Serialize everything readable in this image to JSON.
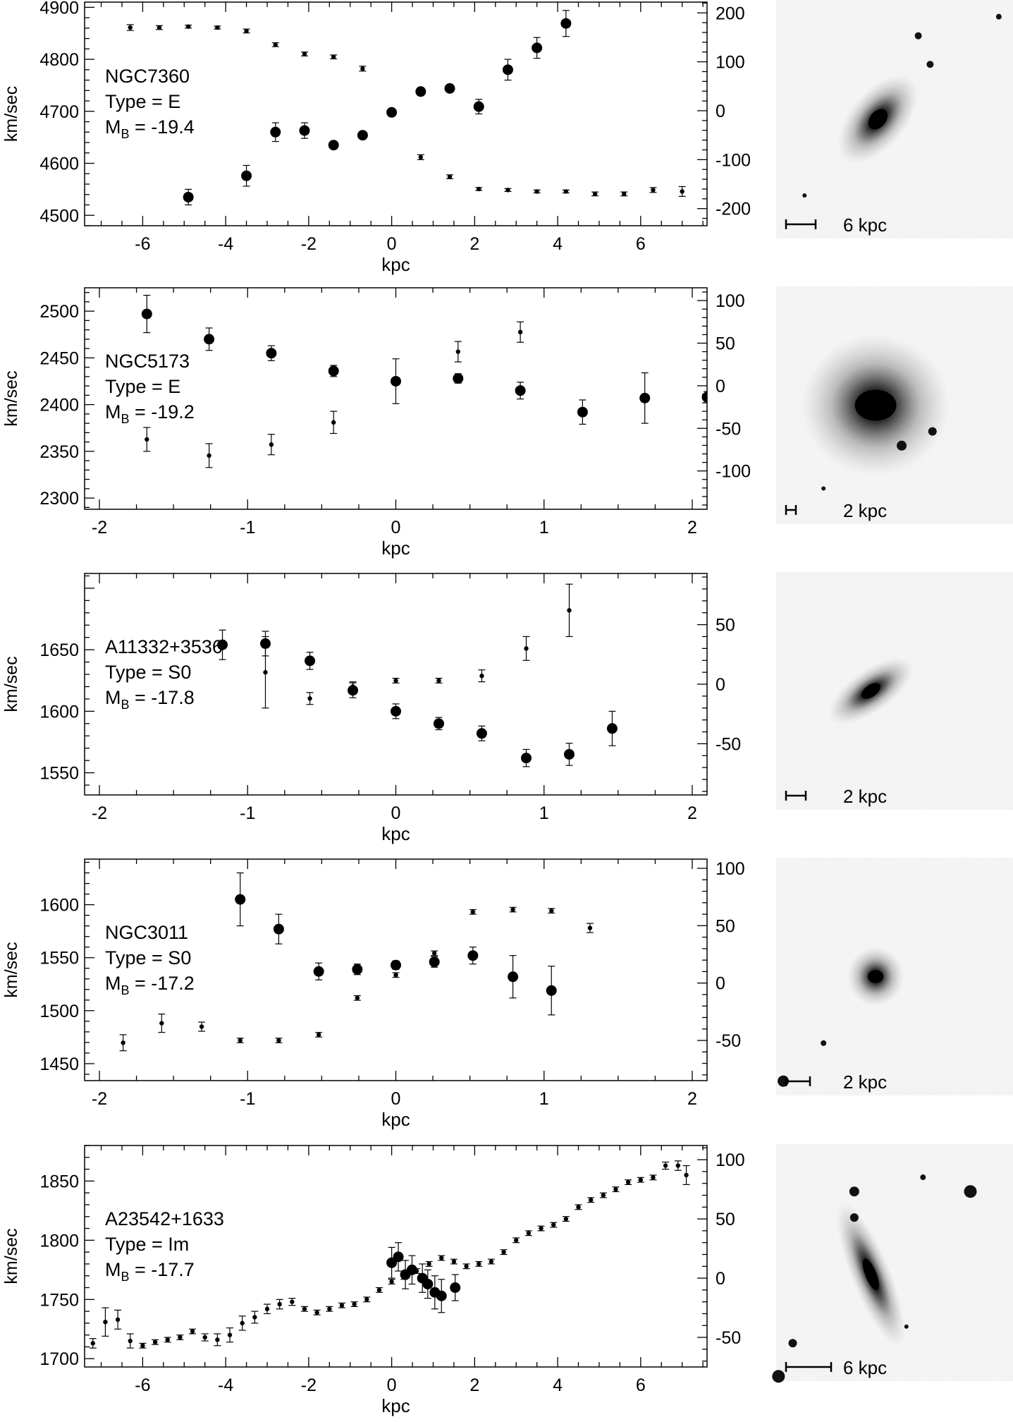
{
  "ylabel_left": "km/sec",
  "xlabel": "kpc",
  "chart_data": [
    {
      "type": "scatter",
      "name": "NGC7360",
      "label_lines": [
        "NGC7360",
        "Type = E",
        "M_B = -19.4"
      ],
      "xlim": [
        -7.4,
        7.6
      ],
      "xticks": [
        -6,
        -4,
        -2,
        0,
        2,
        4,
        6
      ],
      "ylim_left": [
        4480,
        4910
      ],
      "yticks_left": [
        4500,
        4600,
        4700,
        4800,
        4900
      ],
      "ylim_right": [
        -235,
        222
      ],
      "yticks_right": [
        -200,
        -100,
        0,
        100,
        200
      ],
      "velocity_points": [
        {
          "x": -4.9,
          "y": 4535,
          "err": 15
        },
        {
          "x": -3.5,
          "y": 4576,
          "err": 20
        },
        {
          "x": -2.8,
          "y": 4660,
          "err": 18
        },
        {
          "x": -2.1,
          "y": 4663,
          "err": 15
        },
        {
          "x": -1.4,
          "y": 4635,
          "err": 6
        },
        {
          "x": -0.7,
          "y": 4654,
          "err": 4
        },
        {
          "x": 0.0,
          "y": 4698,
          "err": 5
        },
        {
          "x": 0.7,
          "y": 4738,
          "err": 5
        },
        {
          "x": 1.4,
          "y": 4744,
          "err": 6
        },
        {
          "x": 2.1,
          "y": 4709,
          "err": 14
        },
        {
          "x": 2.8,
          "y": 4780,
          "err": 20
        },
        {
          "x": 3.5,
          "y": 4822,
          "err": 20
        },
        {
          "x": 4.2,
          "y": 4869,
          "err": 25
        }
      ],
      "dispersion_points": [
        {
          "x": -6.3,
          "y": 170,
          "err": 6
        },
        {
          "x": -5.6,
          "y": 170,
          "err": 4
        },
        {
          "x": -4.9,
          "y": 172,
          "err": 3
        },
        {
          "x": -4.2,
          "y": 170,
          "err": 3
        },
        {
          "x": -3.5,
          "y": 163,
          "err": 4
        },
        {
          "x": -2.8,
          "y": 135,
          "err": 4
        },
        {
          "x": -2.1,
          "y": 116,
          "err": 4
        },
        {
          "x": -1.4,
          "y": 110,
          "err": 4
        },
        {
          "x": -0.7,
          "y": 86,
          "err": 5
        },
        {
          "x": 0.7,
          "y": -95,
          "err": 5
        },
        {
          "x": 1.4,
          "y": -135,
          "err": 4
        },
        {
          "x": 2.1,
          "y": -160,
          "err": 3
        },
        {
          "x": 2.8,
          "y": -162,
          "err": 3
        },
        {
          "x": 3.5,
          "y": -165,
          "err": 3
        },
        {
          "x": 4.2,
          "y": -165,
          "err": 3
        },
        {
          "x": 4.9,
          "y": -170,
          "err": 4
        },
        {
          "x": 5.6,
          "y": -170,
          "err": 4
        },
        {
          "x": 6.3,
          "y": -162,
          "err": 5
        },
        {
          "x": 7.0,
          "y": -165,
          "err": 10
        }
      ],
      "image_scale": "6 kpc"
    },
    {
      "type": "scatter",
      "name": "NGC5173",
      "label_lines": [
        "NGC5173",
        "Type = E",
        "M_B = -19.2"
      ],
      "xlim": [
        -2.1,
        2.1
      ],
      "xticks": [
        -2,
        -1,
        0,
        1,
        2
      ],
      "ylim_left": [
        2288,
        2525
      ],
      "yticks_left": [
        2300,
        2350,
        2400,
        2450,
        2500
      ],
      "ylim_right": [
        -145,
        115
      ],
      "yticks_right": [
        -100,
        -50,
        0,
        50,
        100
      ],
      "velocity_points": [
        {
          "x": -1.68,
          "y": 2497,
          "err": 20
        },
        {
          "x": -1.26,
          "y": 2470,
          "err": 12
        },
        {
          "x": -0.84,
          "y": 2455,
          "err": 8
        },
        {
          "x": -0.42,
          "y": 2436,
          "err": 6
        },
        {
          "x": 0.0,
          "y": 2425,
          "err": 24
        },
        {
          "x": 0.42,
          "y": 2428,
          "err": 5
        },
        {
          "x": 0.84,
          "y": 2415,
          "err": 9
        },
        {
          "x": 1.26,
          "y": 2392,
          "err": 13
        },
        {
          "x": 1.68,
          "y": 2407,
          "err": 27
        },
        {
          "x": 2.1,
          "y": 2408,
          "err": 6
        }
      ],
      "dispersion_points": [
        {
          "x": -1.68,
          "y": -63,
          "err": 14
        },
        {
          "x": -1.26,
          "y": -82,
          "err": 14
        },
        {
          "x": -0.84,
          "y": -69,
          "err": 12
        },
        {
          "x": -0.42,
          "y": -43,
          "err": 13
        },
        {
          "x": 0.42,
          "y": 40,
          "err": 12
        },
        {
          "x": 0.84,
          "y": 63,
          "err": 12
        }
      ],
      "image_scale": "2 kpc"
    },
    {
      "type": "scatter",
      "name": "A11332+3536",
      "label_lines": [
        "A11332+3536",
        "Type = S0",
        "M_B = -17.8"
      ],
      "xlim": [
        -2.1,
        2.1
      ],
      "xticks": [
        -2,
        -1,
        0,
        1,
        2
      ],
      "ylim_left": [
        1532,
        1712
      ],
      "yticks_left": [
        1550,
        1600,
        1650
      ],
      "ylim_right": [
        -93,
        93
      ],
      "yticks_right": [
        -50,
        0,
        50
      ],
      "velocity_points": [
        {
          "x": -1.17,
          "y": 1654,
          "err": 12
        },
        {
          "x": -0.88,
          "y": 1655,
          "err": 10
        },
        {
          "x": -0.58,
          "y": 1641,
          "err": 7
        },
        {
          "x": -0.29,
          "y": 1617,
          "err": 6
        },
        {
          "x": 0.0,
          "y": 1600,
          "err": 6
        },
        {
          "x": 0.29,
          "y": 1590,
          "err": 5
        },
        {
          "x": 0.58,
          "y": 1582,
          "err": 6
        },
        {
          "x": 0.88,
          "y": 1562,
          "err": 7
        },
        {
          "x": 1.17,
          "y": 1565,
          "err": 9
        },
        {
          "x": 1.46,
          "y": 1586,
          "err": 14
        }
      ],
      "dispersion_points": [
        {
          "x": -0.88,
          "y": 10,
          "err": 30
        },
        {
          "x": -0.58,
          "y": -12,
          "err": 5
        },
        {
          "x": -0.29,
          "y": -2,
          "err": 4
        },
        {
          "x": 0.0,
          "y": 3,
          "err": 2
        },
        {
          "x": 0.29,
          "y": 3,
          "err": 2
        },
        {
          "x": 0.58,
          "y": 7,
          "err": 5
        },
        {
          "x": 0.88,
          "y": 30,
          "err": 10
        },
        {
          "x": 1.17,
          "y": 62,
          "err": 22
        }
      ],
      "image_scale": "2 kpc"
    },
    {
      "type": "scatter",
      "name": "NGC3011",
      "label_lines": [
        "NGC3011",
        "Type = S0",
        "M_B = -17.2"
      ],
      "xlim": [
        -2.1,
        2.1
      ],
      "xticks": [
        -2,
        -1,
        0,
        1,
        2
      ],
      "ylim_left": [
        1434,
        1643
      ],
      "yticks_left": [
        1450,
        1500,
        1550,
        1600
      ],
      "ylim_right": [
        -85,
        108
      ],
      "yticks_right": [
        -50,
        0,
        50,
        100
      ],
      "velocity_points": [
        {
          "x": -1.05,
          "y": 1605,
          "err": 25
        },
        {
          "x": -0.79,
          "y": 1577,
          "err": 14
        },
        {
          "x": -0.52,
          "y": 1537,
          "err": 8
        },
        {
          "x": -0.26,
          "y": 1539,
          "err": 5
        },
        {
          "x": 0.0,
          "y": 1543,
          "err": 4
        },
        {
          "x": 0.26,
          "y": 1546,
          "err": 5
        },
        {
          "x": 0.52,
          "y": 1552,
          "err": 8
        },
        {
          "x": 0.79,
          "y": 1532,
          "err": 20
        },
        {
          "x": 1.05,
          "y": 1519,
          "err": 23
        }
      ],
      "dispersion_points": [
        {
          "x": -1.84,
          "y": -52,
          "err": 7
        },
        {
          "x": -1.58,
          "y": -35,
          "err": 8
        },
        {
          "x": -1.31,
          "y": -38,
          "err": 4
        },
        {
          "x": -1.05,
          "y": -50,
          "err": 2
        },
        {
          "x": -0.79,
          "y": -50,
          "err": 2
        },
        {
          "x": -0.52,
          "y": -45,
          "err": 2
        },
        {
          "x": -0.26,
          "y": -13,
          "err": 2
        },
        {
          "x": 0.0,
          "y": 7,
          "err": 2
        },
        {
          "x": 0.26,
          "y": 26,
          "err": 2
        },
        {
          "x": 0.52,
          "y": 62,
          "err": 2
        },
        {
          "x": 0.79,
          "y": 64,
          "err": 2
        },
        {
          "x": 1.05,
          "y": 63,
          "err": 2
        },
        {
          "x": 1.31,
          "y": 48,
          "err": 4
        }
      ],
      "image_scale": "2 kpc"
    },
    {
      "type": "scatter",
      "name": "A23542+1633",
      "label_lines": [
        "A23542+1633",
        "Type = Im",
        "M_B = -17.7"
      ],
      "xlim": [
        -7.4,
        7.6
      ],
      "xticks": [
        -6,
        -4,
        -2,
        0,
        2,
        4,
        6
      ],
      "ylim_left": [
        1693,
        1880
      ],
      "yticks_left": [
        1700,
        1750,
        1800,
        1850
      ],
      "ylim_right": [
        -75,
        112
      ],
      "yticks_right": [
        -50,
        0,
        50,
        100
      ],
      "velocity_points": [
        {
          "x": 0.0,
          "y": 1781,
          "err": 13
        },
        {
          "x": 0.16,
          "y": 1786,
          "err": 12
        },
        {
          "x": 0.33,
          "y": 1771,
          "err": 12
        },
        {
          "x": 0.49,
          "y": 1775,
          "err": 12
        },
        {
          "x": 0.74,
          "y": 1768,
          "err": 12
        },
        {
          "x": 0.87,
          "y": 1763,
          "err": 12
        },
        {
          "x": 1.04,
          "y": 1756,
          "err": 14
        },
        {
          "x": 1.2,
          "y": 1753,
          "err": 14
        },
        {
          "x": 1.53,
          "y": 1760,
          "err": 11
        }
      ],
      "dispersion_points": [
        {
          "x": -7.2,
          "y": -55,
          "err": 4
        },
        {
          "x": -6.9,
          "y": -37,
          "err": 12
        },
        {
          "x": -6.6,
          "y": -35,
          "err": 8
        },
        {
          "x": -6.3,
          "y": -53,
          "err": 6
        },
        {
          "x": -6.0,
          "y": -57,
          "err": 2
        },
        {
          "x": -5.7,
          "y": -54,
          "err": 2
        },
        {
          "x": -5.4,
          "y": -52,
          "err": 2
        },
        {
          "x": -5.1,
          "y": -50,
          "err": 2
        },
        {
          "x": -4.8,
          "y": -45,
          "err": 2
        },
        {
          "x": -4.5,
          "y": -50,
          "err": 3
        },
        {
          "x": -4.2,
          "y": -52,
          "err": 5
        },
        {
          "x": -3.9,
          "y": -48,
          "err": 6
        },
        {
          "x": -3.6,
          "y": -38,
          "err": 6
        },
        {
          "x": -3.3,
          "y": -33,
          "err": 5
        },
        {
          "x": -3.0,
          "y": -26,
          "err": 4
        },
        {
          "x": -2.7,
          "y": -22,
          "err": 4
        },
        {
          "x": -2.4,
          "y": -20,
          "err": 3
        },
        {
          "x": -2.1,
          "y": -26,
          "err": 2
        },
        {
          "x": -1.8,
          "y": -29,
          "err": 2
        },
        {
          "x": -1.5,
          "y": -26,
          "err": 2
        },
        {
          "x": -1.2,
          "y": -23,
          "err": 2
        },
        {
          "x": -0.9,
          "y": -22,
          "err": 2
        },
        {
          "x": -0.6,
          "y": -18,
          "err": 2
        },
        {
          "x": -0.3,
          "y": -10,
          "err": 2
        },
        {
          "x": 0.0,
          "y": -3,
          "err": 2
        },
        {
          "x": 0.3,
          "y": 1,
          "err": 2
        },
        {
          "x": 0.6,
          "y": 6,
          "err": 2
        },
        {
          "x": 0.9,
          "y": 12,
          "err": 2
        },
        {
          "x": 1.2,
          "y": 17,
          "err": 2
        },
        {
          "x": 1.5,
          "y": 14,
          "err": 2
        },
        {
          "x": 1.8,
          "y": 10,
          "err": 2
        },
        {
          "x": 2.1,
          "y": 12,
          "err": 2
        },
        {
          "x": 2.4,
          "y": 14,
          "err": 2
        },
        {
          "x": 2.7,
          "y": 22,
          "err": 2
        },
        {
          "x": 3.0,
          "y": 32,
          "err": 2
        },
        {
          "x": 3.3,
          "y": 38,
          "err": 2
        },
        {
          "x": 3.6,
          "y": 42,
          "err": 2
        },
        {
          "x": 3.9,
          "y": 45,
          "err": 2
        },
        {
          "x": 4.2,
          "y": 50,
          "err": 2
        },
        {
          "x": 4.5,
          "y": 60,
          "err": 2
        },
        {
          "x": 4.8,
          "y": 66,
          "err": 2
        },
        {
          "x": 5.1,
          "y": 70,
          "err": 2
        },
        {
          "x": 5.4,
          "y": 75,
          "err": 2
        },
        {
          "x": 5.7,
          "y": 81,
          "err": 2
        },
        {
          "x": 6.0,
          "y": 83,
          "err": 2
        },
        {
          "x": 6.3,
          "y": 85,
          "err": 2
        },
        {
          "x": 6.6,
          "y": 95,
          "err": 3
        },
        {
          "x": 6.9,
          "y": 95,
          "err": 4
        },
        {
          "x": 7.1,
          "y": 87,
          "err": 8
        }
      ],
      "image_scale": "6 kpc"
    }
  ]
}
